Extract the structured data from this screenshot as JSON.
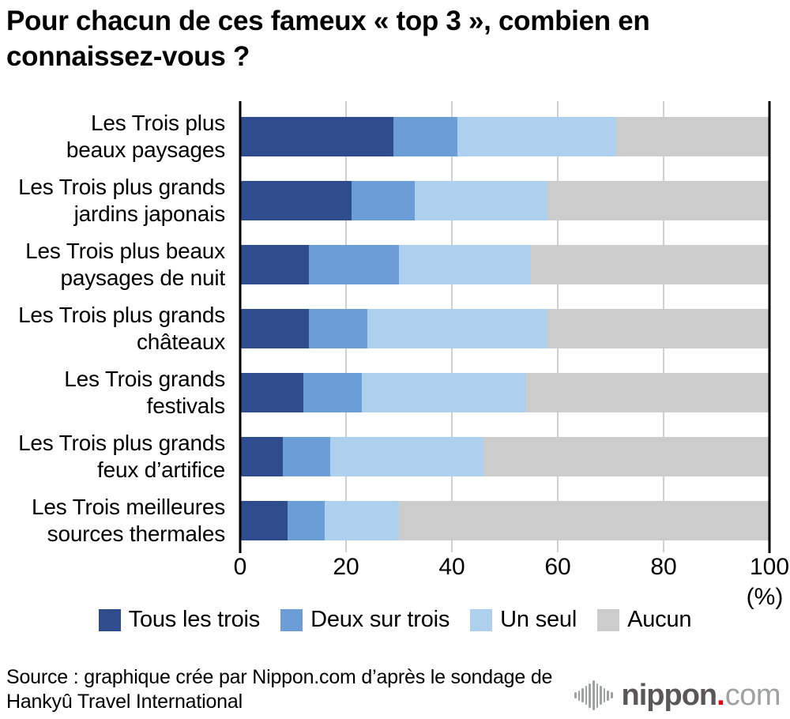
{
  "header": {
    "title_lines": [
      "Pour chacun de ces fameux « top 3 », combien en",
      "connaissez-vous ?"
    ]
  },
  "chart_data": {
    "type": "bar",
    "orientation": "horizontal",
    "stacked": true,
    "title": "Pour chacun de ces fameux « top 3 », combien en connaissez-vous ?",
    "categories": [
      [
        "Les Trois plus",
        "beaux paysages"
      ],
      [
        "Les Trois plus grands",
        "jardins japonais"
      ],
      [
        "Les Trois plus beaux",
        "paysages de nuit"
      ],
      [
        "Les Trois plus grands",
        "châteaux"
      ],
      [
        "Les Trois grands",
        "festivals"
      ],
      [
        "Les Trois plus grands",
        "feux d’artifice"
      ],
      [
        "Les Trois meilleures",
        "sources thermales"
      ]
    ],
    "series": [
      {
        "name": "Tous les trois",
        "color": "#2e4c8e",
        "values": [
          29,
          21,
          13,
          13,
          12,
          8,
          9
        ]
      },
      {
        "name": "Deux sur trois",
        "color": "#6b9dd6",
        "values": [
          12,
          12,
          17,
          11,
          11,
          9,
          7
        ]
      },
      {
        "name": "Un seul",
        "color": "#aed0ef",
        "values": [
          30,
          25,
          25,
          34,
          31,
          29,
          14
        ]
      },
      {
        "name": "Aucun",
        "color": "#cccccc",
        "values": [
          29,
          42,
          45,
          42,
          46,
          54,
          70
        ]
      }
    ],
    "xlim": [
      0,
      100
    ],
    "x_ticks": [
      0,
      20,
      40,
      60,
      80,
      100
    ],
    "x_unit_label": "(%)",
    "grid": true,
    "legend_position": "bottom",
    "grid_color": "#cfcfcf",
    "axis_color": "#000000"
  },
  "footer": {
    "source_lines": [
      "Source : graphique crée par Nippon.com d’après le sondage de",
      "Hankyû Travel International"
    ],
    "logo": {
      "icon": "sound-wave-icon",
      "brand": "nippon",
      "dot": ".",
      "suffix": "com",
      "brand_color": "#595757",
      "dot_color": "#e60012",
      "suffix_color": "#9fa0a0"
    }
  }
}
